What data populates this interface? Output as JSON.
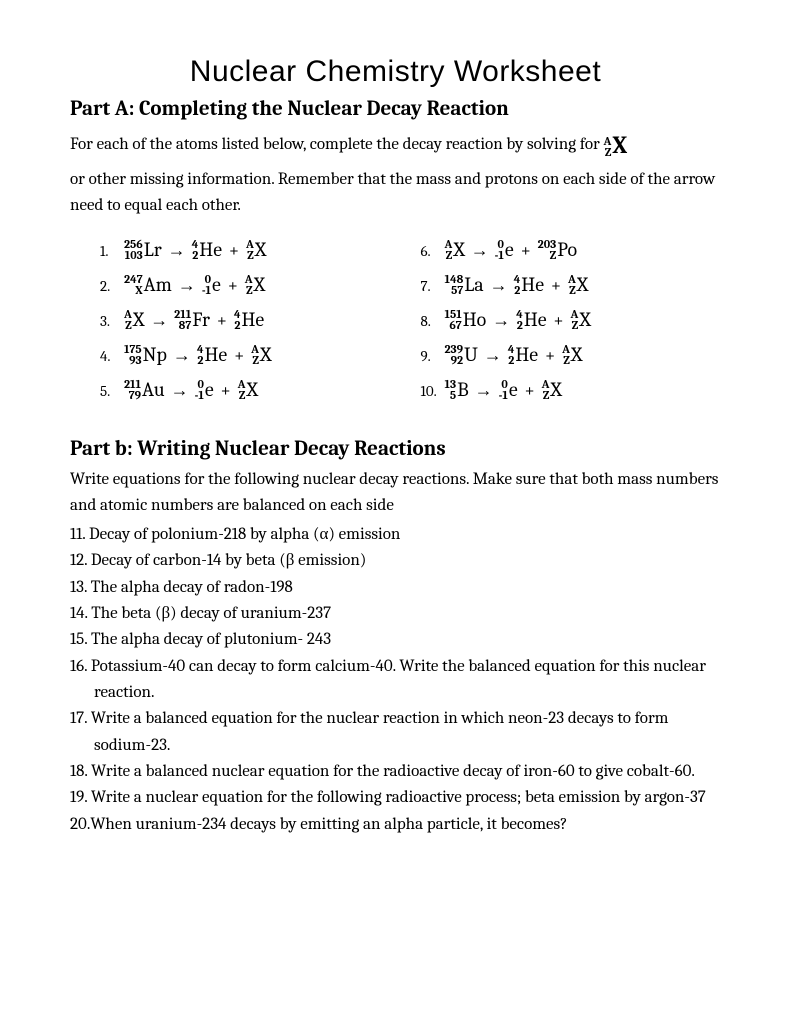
{
  "title": "Nuclear Chemistry Worksheet",
  "partA": {
    "heading": "Part A:  Completing the Nuclear Decay Reaction",
    "intro1_pre": "For each of the atoms listed below, complete the decay reaction by solving for ",
    "intro2": "or other missing information. Remember that the mass and protons on each side of the arrow need to equal each other."
  },
  "rxns": {
    "r1": {
      "n": "1.",
      "a1": "256",
      "z1": "103",
      "s1": "Lr",
      "a2": "4",
      "z2": "2",
      "s2": "He",
      "a3": "A",
      "z3": "Z",
      "s3": "X"
    },
    "r2": {
      "n": "2.",
      "a1": "247",
      "z1": "X",
      "s1": "Am",
      "a2": "0",
      "z2": "-1",
      "s2": "e",
      "a3": "A",
      "z3": "Z",
      "s3": "X"
    },
    "r3": {
      "n": "3.",
      "a1": "A",
      "z1": "Z",
      "s1": "X",
      "a2": "211",
      "z2": "87",
      "s2": "Fr",
      "a3": "4",
      "z3": "2",
      "s3": "He"
    },
    "r4": {
      "n": "4.",
      "a1": "175",
      "z1": "93",
      "s1": "Np",
      "a2": "4",
      "z2": "2",
      "s2": "He",
      "a3": "A",
      "z3": "Z",
      "s3": "X"
    },
    "r5": {
      "n": "5.",
      "a1": "211",
      "z1": "79",
      "s1": "Au",
      "a2": "0",
      "z2": "-1",
      "s2": "e",
      "a3": "A",
      "z3": "Z",
      "s3": "X"
    },
    "r6": {
      "n": "6.",
      "a1": "A",
      "z1": "Z",
      "s1": "X",
      "a2": "0",
      "z2": "-1",
      "s2": "e",
      "a3": "203",
      "z3": "Z",
      "s3": "Po"
    },
    "r7": {
      "n": "7.",
      "a1": "148",
      "z1": "57",
      "s1": "La",
      "a2": "4",
      "z2": "2",
      "s2": "He",
      "a3": "A",
      "z3": "Z",
      "s3": "X"
    },
    "r8": {
      "n": "8.",
      "a1": "151",
      "z1": "67",
      "s1": "Ho",
      "a2": "4",
      "z2": "2",
      "s2": "He",
      "a3": "A",
      "z3": "Z",
      "s3": "X"
    },
    "r9": {
      "n": "9.",
      "a1": "239",
      "z1": "92",
      "s1": "U",
      "a2": "4",
      "z2": "2",
      "s2": "He",
      "a3": "A",
      "z3": "Z",
      "s3": "X"
    },
    "r10": {
      "n": "10.",
      "a1": "13",
      "z1": "5",
      "s1": "B",
      "a2": "0",
      "z2": "-1",
      "s2": "e",
      "a3": "A",
      "z3": "Z",
      "s3": "X"
    }
  },
  "partB": {
    "heading": "Part b: Writing Nuclear Decay Reactions",
    "intro": "Write equations for the following nuclear decay reactions. Make sure that both mass numbers and atomic numbers are balanced on each side",
    "items": {
      "i11": "11.  Decay of polonium-218 by alpha (α) emission",
      "i12": "12. Decay of carbon-14 by beta (β emission)",
      "i13": "13. The alpha decay of radon-198",
      "i14": "14. The beta (β) decay of uranium-237",
      "i15": "15. The alpha decay of plutonium- 243",
      "i16": "16. Potassium-40 can decay to form calcium-40.  Write the balanced equation for this nuclear reaction.",
      "i17": "17. Write a balanced equation for the nuclear reaction in which neon-23 decays to form sodium-23.",
      "i18": "18. Write a balanced nuclear equation for the radioactive decay of iron-60 to give cobalt-60.",
      "i19": "19. Write a nuclear equation for the following radioactive process; beta emission by argon-37",
      "i20": "20.When uranium-234 decays by emitting an alpha particle, it becomes?"
    }
  },
  "xnot": {
    "top": "A",
    "bot": "Z",
    "sym": "X"
  }
}
